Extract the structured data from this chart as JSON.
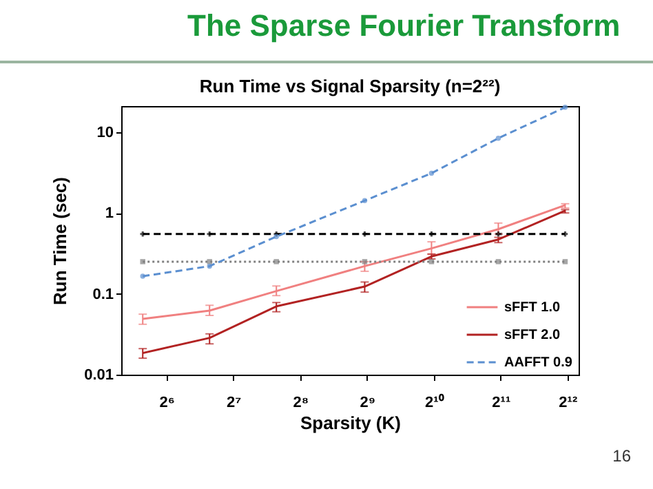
{
  "chart_data": {
    "type": "line",
    "title": "Run Time vs Signal Sparsity (n=2²²)",
    "xlabel": "Sparsity (K)",
    "ylabel": "Run Time (sec)",
    "annotations": [
      "The Sparse Fourier Transform",
      "16"
    ],
    "x": [
      50,
      100,
      200,
      500,
      1000,
      2000,
      4000
    ],
    "series": [
      {
        "name": "sFFT 1.0",
        "color": "#f08080",
        "line_style": "solid",
        "marker": "none",
        "values": [
          0.049,
          0.062,
          0.108,
          0.22,
          0.365,
          0.63,
          1.25
        ],
        "errors": [
          [
            0.042,
            0.056
          ],
          [
            0.054,
            0.072
          ],
          [
            0.095,
            0.125
          ],
          [
            0.19,
            0.25
          ],
          [
            0.31,
            0.44
          ],
          [
            0.55,
            0.75
          ],
          [
            1.15,
            1.3
          ]
        ]
      },
      {
        "name": "sFFT 2.0",
        "color": "#b22222",
        "line_style": "solid",
        "marker": "none",
        "values": [
          0.0185,
          0.0285,
          0.07,
          0.123,
          0.29,
          0.47,
          1.07
        ],
        "errors": [
          [
            0.016,
            0.021
          ],
          [
            0.024,
            0.032
          ],
          [
            0.06,
            0.078
          ],
          [
            0.105,
            0.14
          ],
          [
            0.27,
            0.31
          ],
          [
            0.43,
            0.5
          ],
          [
            1.0,
            1.1
          ]
        ]
      },
      {
        "color": "#000000",
        "line_style": "dashed",
        "marker": "cross",
        "values": [
          0.55,
          0.55,
          0.55,
          0.55,
          0.55,
          0.55,
          0.55
        ]
      },
      {
        "color": "#808080",
        "line_style": "dotted",
        "marker": "square",
        "values": [
          0.25,
          0.25,
          0.25,
          0.25,
          0.25,
          0.25,
          0.25
        ]
      },
      {
        "name": "AAFFT 0.9",
        "color": "#5b8fd0",
        "line_style": "dashed",
        "marker": "circle",
        "values": [
          0.165,
          0.22,
          0.51,
          1.42,
          3.1,
          8.4,
          20.3
        ]
      }
    ],
    "log": "xy",
    "xlim": [
      40,
      4600
    ],
    "ylim": [
      0.01,
      21
    ],
    "xticks": [
      {
        "value": 64,
        "label": "2⁶"
      },
      {
        "value": 128,
        "label": "2⁷"
      },
      {
        "value": 256,
        "label": "2⁸"
      },
      {
        "value": 512,
        "label": "2⁹"
      },
      {
        "value": 1024,
        "label": "2¹⁰"
      },
      {
        "value": 2048,
        "label": "2¹¹"
      },
      {
        "value": 4096,
        "label": "2¹²"
      }
    ],
    "yticks": [
      0.01,
      0.1,
      1,
      10
    ],
    "legend": "bottom right"
  }
}
